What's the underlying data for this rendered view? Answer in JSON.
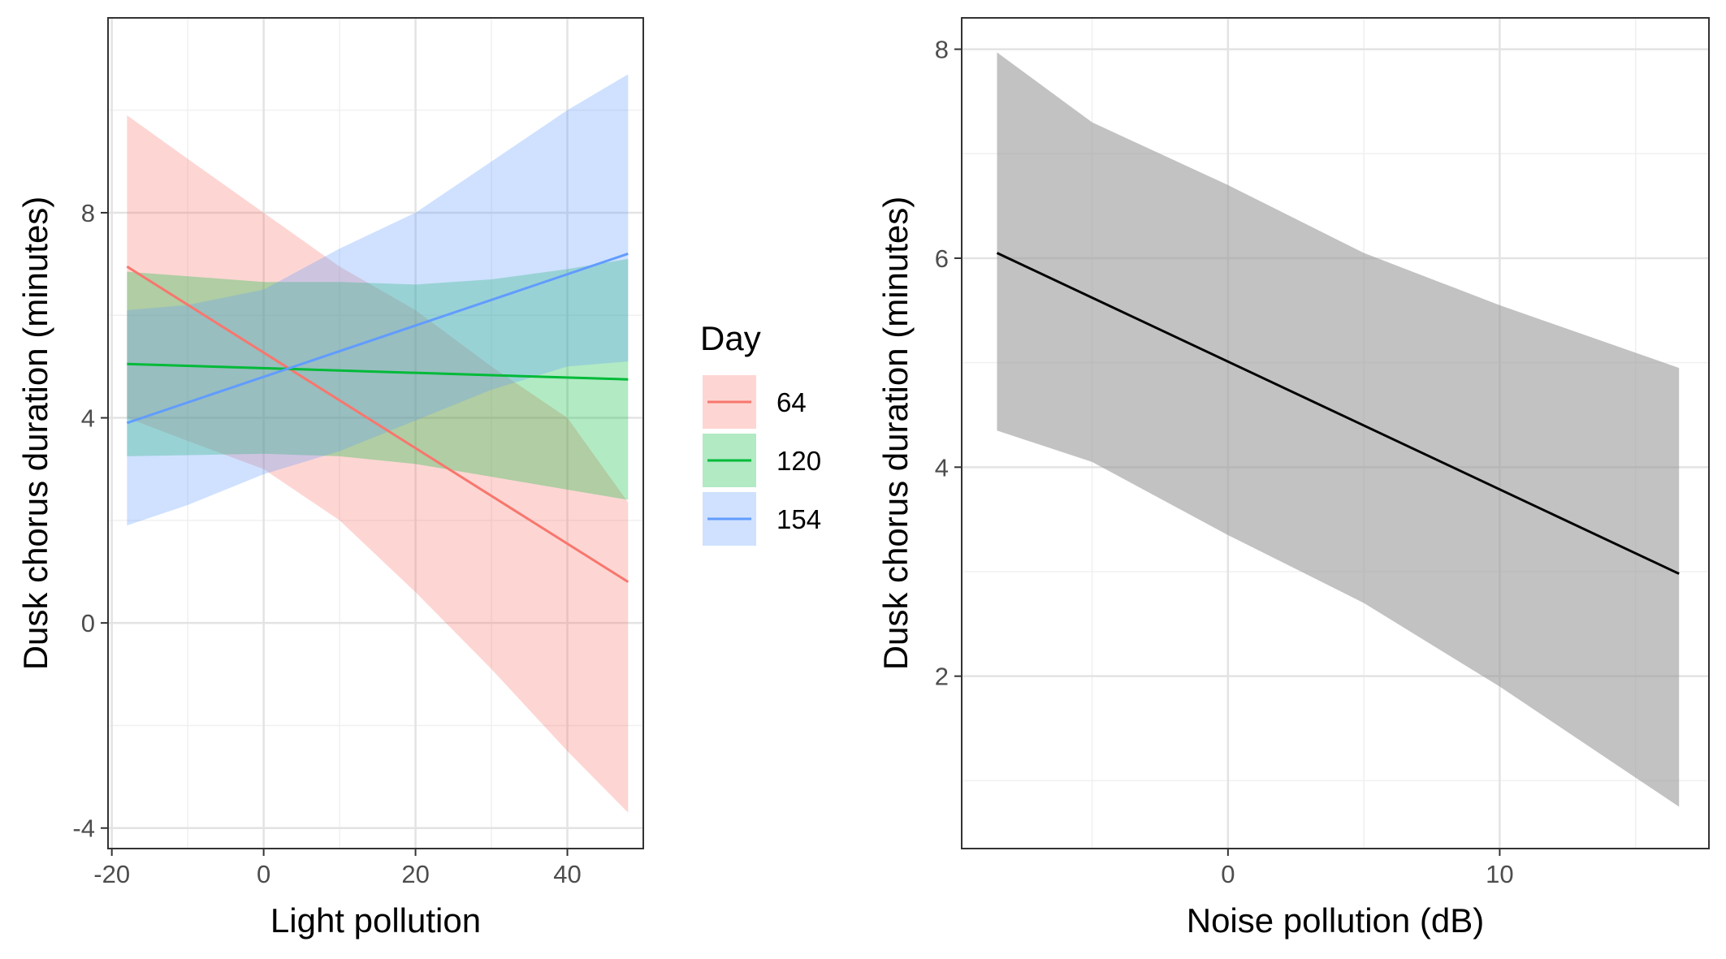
{
  "chart_data": [
    {
      "type": "line",
      "title": "",
      "xlabel": "Light pollution",
      "ylabel": "Dusk chorus duration (minutes)",
      "xlim": [
        -20.5,
        50
      ],
      "ylim": [
        -4.4,
        11.8
      ],
      "x_ticks": [
        -20,
        0,
        20,
        40
      ],
      "y_ticks": [
        -4,
        0,
        4,
        8
      ],
      "grid": true,
      "legend": {
        "title": "Day",
        "placement": "right"
      },
      "series": [
        {
          "name": "64",
          "color": "#F8766D",
          "x": [
            -18,
            48
          ],
          "y": [
            6.95,
            0.8
          ],
          "band_x": [
            -18,
            -10,
            0,
            10,
            20,
            30,
            40,
            48
          ],
          "band_lower": [
            4.0,
            3.55,
            3.0,
            2.0,
            0.6,
            -0.9,
            -2.5,
            -3.7
          ],
          "band_upper": [
            9.9,
            9.05,
            8.0,
            6.95,
            6.1,
            5.0,
            4.0,
            2.35
          ]
        },
        {
          "name": "120",
          "color": "#00BA38",
          "x": [
            -18,
            48
          ],
          "y": [
            5.05,
            4.75
          ],
          "band_x": [
            -18,
            0,
            10,
            20,
            30,
            40,
            48
          ],
          "band_lower": [
            3.25,
            3.3,
            3.25,
            3.1,
            2.85,
            2.6,
            2.4
          ],
          "band_upper": [
            6.85,
            6.65,
            6.65,
            6.6,
            6.7,
            6.9,
            7.1
          ]
        },
        {
          "name": "154",
          "color": "#619CFF",
          "x": [
            -18,
            48
          ],
          "y": [
            3.9,
            7.2
          ],
          "band_x": [
            -18,
            -10,
            0,
            10,
            20,
            30,
            40,
            48
          ],
          "band_lower": [
            1.9,
            2.3,
            2.9,
            3.35,
            3.95,
            4.55,
            5.0,
            5.1
          ],
          "band_upper": [
            6.1,
            6.2,
            6.5,
            7.3,
            8.0,
            9.0,
            10.0,
            10.7
          ]
        }
      ]
    },
    {
      "type": "line",
      "title": "",
      "xlabel": "Noise pollution (dB)",
      "ylabel": "Dusk chorus duration (minutes)",
      "xlim": [
        -9.8,
        17.7
      ],
      "ylim": [
        0.35,
        8.3
      ],
      "x_ticks": [
        0,
        10
      ],
      "y_ticks": [
        2,
        4,
        6,
        8
      ],
      "grid": true,
      "series": [
        {
          "name": "",
          "color": "#000000",
          "x": [
            -8.5,
            16.6
          ],
          "y": [
            6.05,
            2.98
          ],
          "band_x": [
            -8.5,
            -5,
            0,
            5,
            10,
            16.6
          ],
          "band_lower": [
            4.35,
            4.05,
            3.35,
            2.7,
            1.9,
            0.75
          ],
          "band_upper": [
            7.97,
            7.3,
            6.7,
            6.05,
            5.55,
            4.95
          ]
        }
      ]
    }
  ]
}
